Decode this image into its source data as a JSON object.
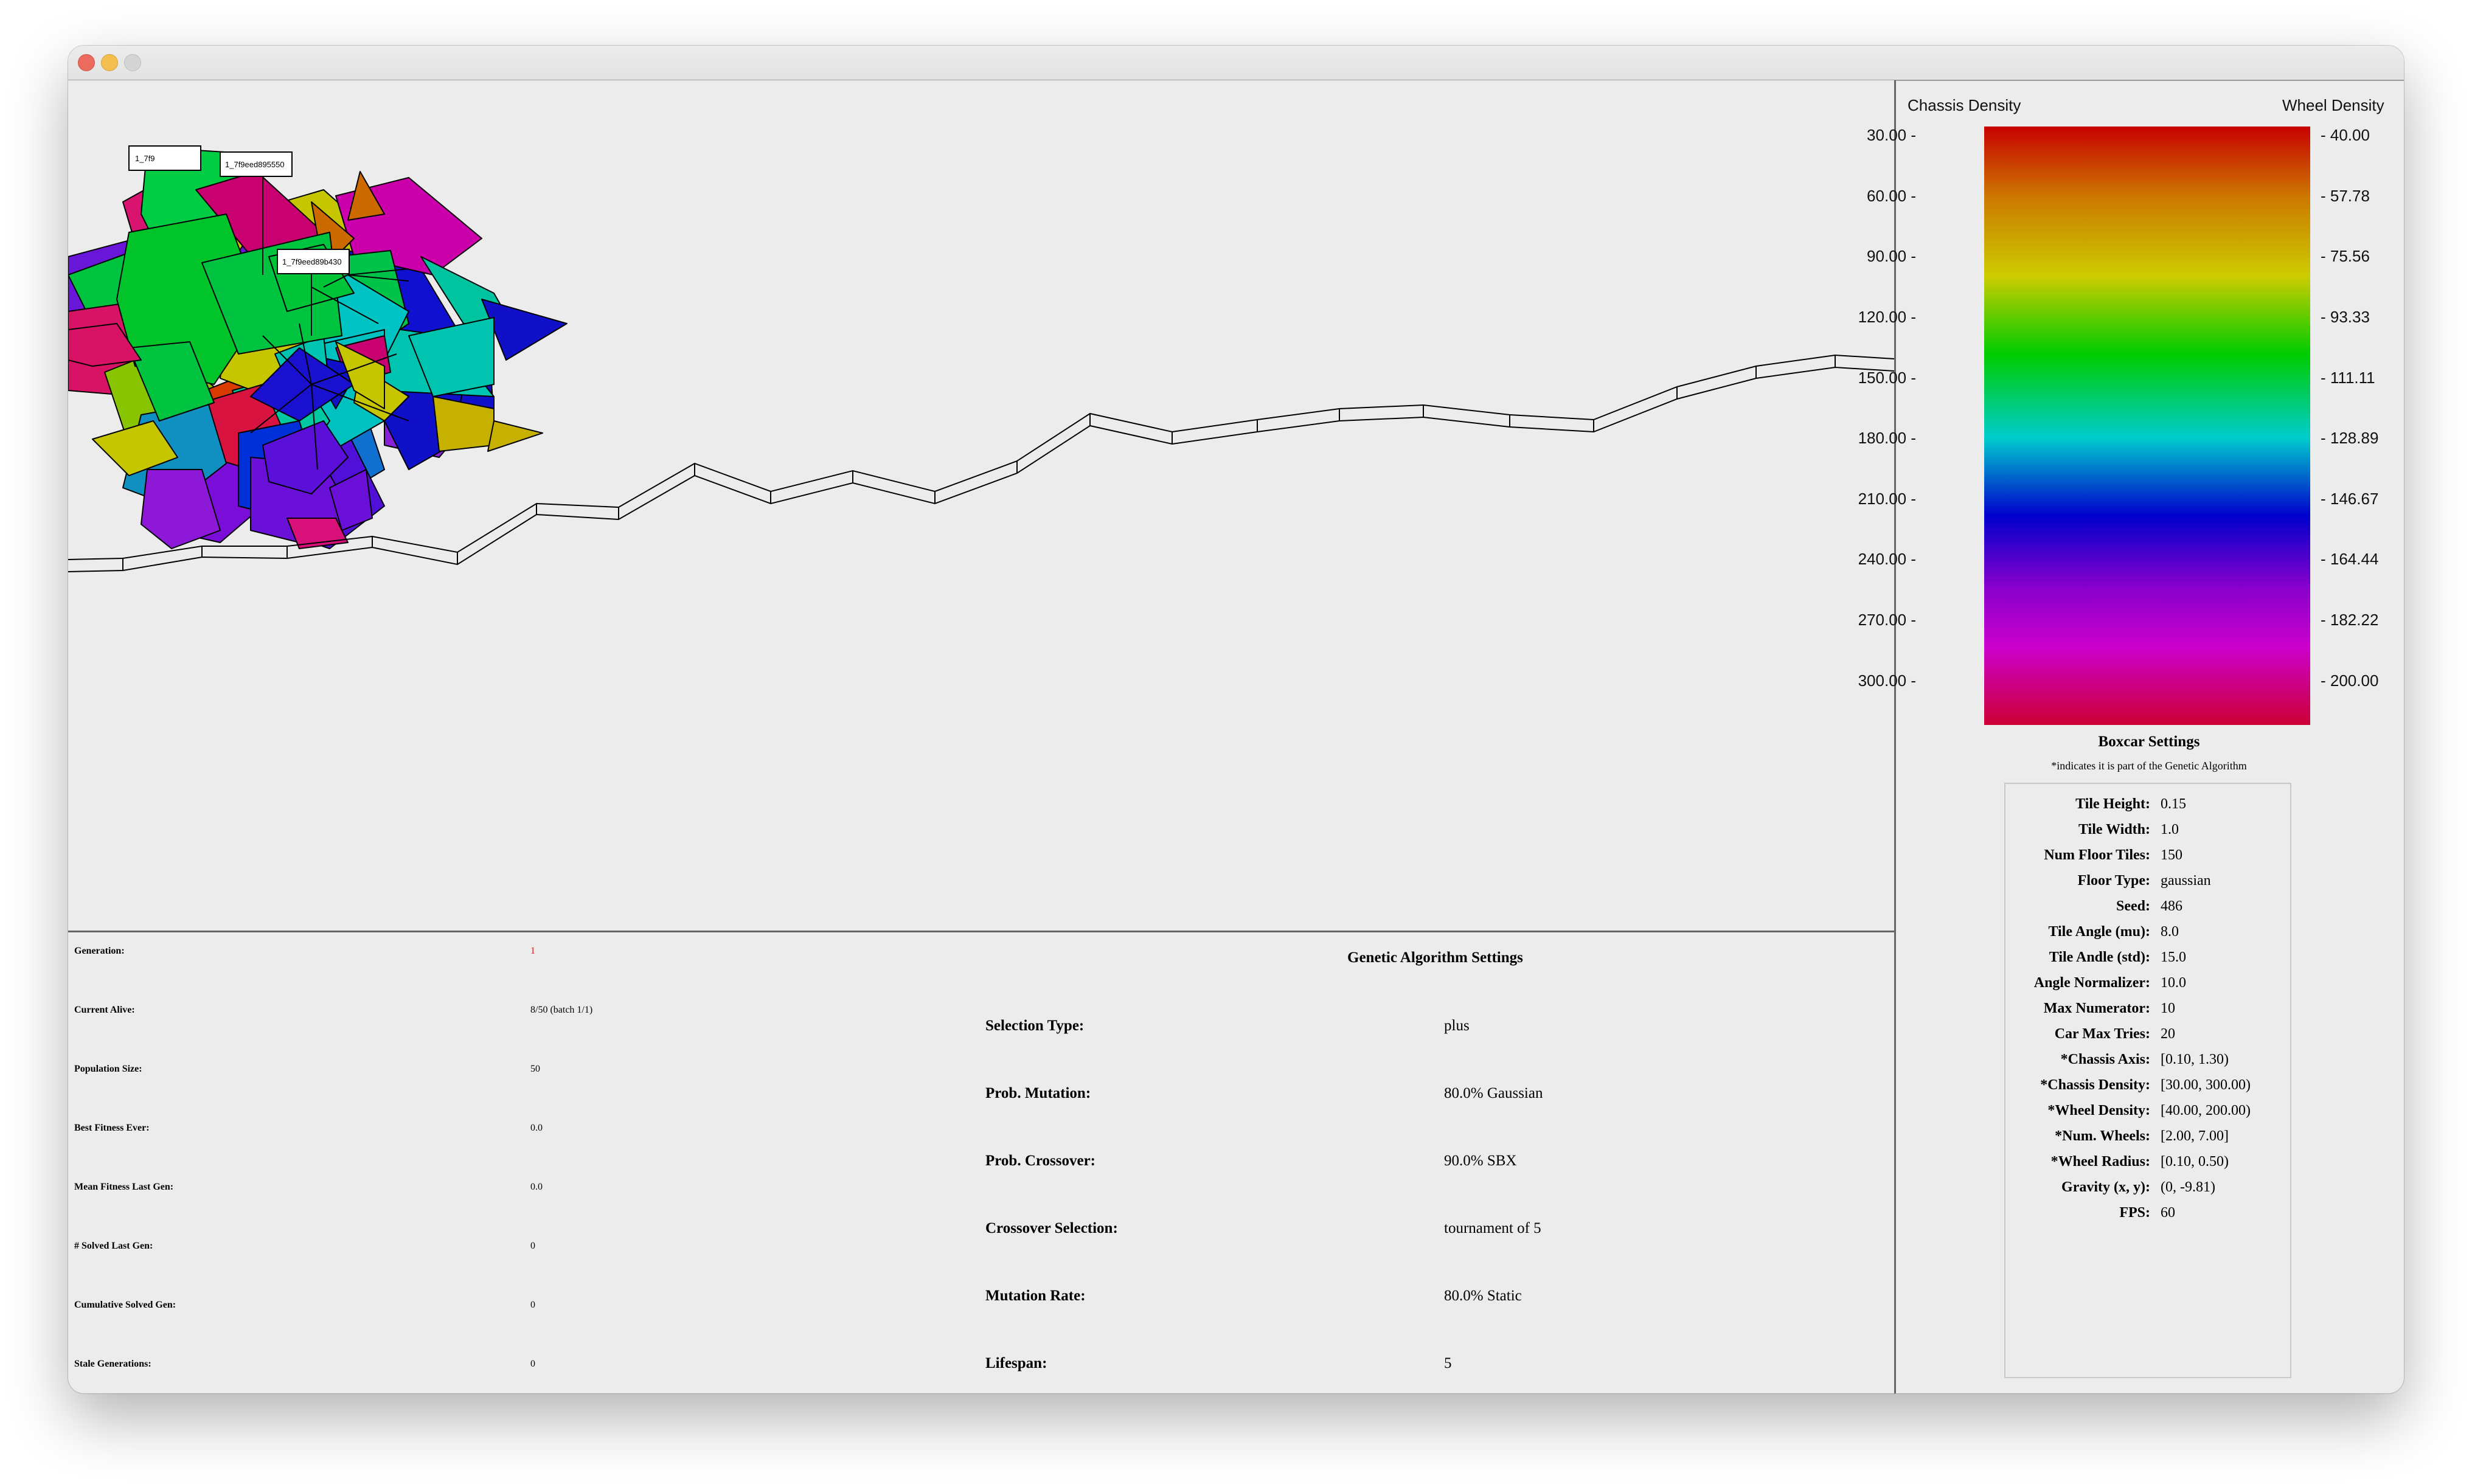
{
  "window": {
    "controls": [
      "close",
      "minimize",
      "zoom"
    ]
  },
  "car_labels": [
    "1_7f9",
    "1_7f9eed895550",
    "1_7f9eed89b430"
  ],
  "stats": [
    {
      "label": "Generation:",
      "value": "1"
    },
    {
      "label": "Current Alive:",
      "value": "8/50 (batch 1/1)"
    },
    {
      "label": "Population Size:",
      "value": "50"
    },
    {
      "label": "Best Fitness Ever:",
      "value": "0.0"
    },
    {
      "label": "Mean Fitness Last Gen:",
      "value": "0.0"
    },
    {
      "label": "# Solved Last Gen:",
      "value": "0"
    },
    {
      "label": "Cumulative Solved Gen:",
      "value": "0"
    },
    {
      "label": "Stale Generations:",
      "value": "0"
    }
  ],
  "stats_colors": {
    "generation_value": "#e01b1b"
  },
  "ga": {
    "title": "Genetic Algorithm Settings",
    "rows": [
      {
        "label": "Selection Type:",
        "value": "plus"
      },
      {
        "label": "Prob. Mutation:",
        "value": "80.0% Gaussian"
      },
      {
        "label": "Prob. Crossover:",
        "value": "90.0% SBX"
      },
      {
        "label": "Crossover Selection:",
        "value": "tournament of 5"
      },
      {
        "label": "Mutation Rate:",
        "value": "80.0% Static"
      },
      {
        "label": "Lifespan:",
        "value": "5"
      }
    ]
  },
  "colorbar": {
    "left_title": "Chassis Density",
    "right_title": "Wheel Density",
    "left_ticks": [
      "30.00 -",
      "60.00 -",
      "90.00 -",
      "120.00 -",
      "150.00 -",
      "180.00 -",
      "210.00 -",
      "240.00 -",
      "270.00 -",
      "300.00 -"
    ],
    "right_ticks": [
      "- 40.00",
      "- 57.78",
      "- 75.56",
      "- 93.33",
      "- 111.11",
      "- 128.89",
      "- 146.67",
      "- 164.44",
      "- 182.22",
      "- 200.00"
    ]
  },
  "boxcar": {
    "title": "Boxcar Settings",
    "subtitle": "*indicates it is part of the Genetic Algorithm",
    "rows": [
      {
        "label": "Tile Height:",
        "value": "0.15"
      },
      {
        "label": "Tile Width:",
        "value": "1.0"
      },
      {
        "label": "Num Floor Tiles:",
        "value": "150"
      },
      {
        "label": "Floor Type:",
        "value": "gaussian"
      },
      {
        "label": "Seed:",
        "value": "486"
      },
      {
        "label": "Tile Angle (mu):",
        "value": "8.0"
      },
      {
        "label": "Tile Andle (std):",
        "value": "15.0"
      },
      {
        "label": "Angle Normalizer:",
        "value": "10.0"
      },
      {
        "label": "Max Numerator:",
        "value": "10"
      },
      {
        "label": "Car Max Tries:",
        "value": "20"
      },
      {
        "label": "*Chassis Axis:",
        "value": "[0.10, 1.30)"
      },
      {
        "label": "*Chassis Density:",
        "value": "[30.00, 300.00)"
      },
      {
        "label": "*Wheel Density:",
        "value": "[40.00, 200.00)"
      },
      {
        "label": "*Num. Wheels:",
        "value": "[2.00, 7.00]"
      },
      {
        "label": "*Wheel Radius:",
        "value": "[0.10, 0.50)"
      },
      {
        "label": "Gravity (x, y):",
        "value": "(0, -9.81)"
      },
      {
        "label": "FPS:",
        "value": "60"
      }
    ]
  }
}
